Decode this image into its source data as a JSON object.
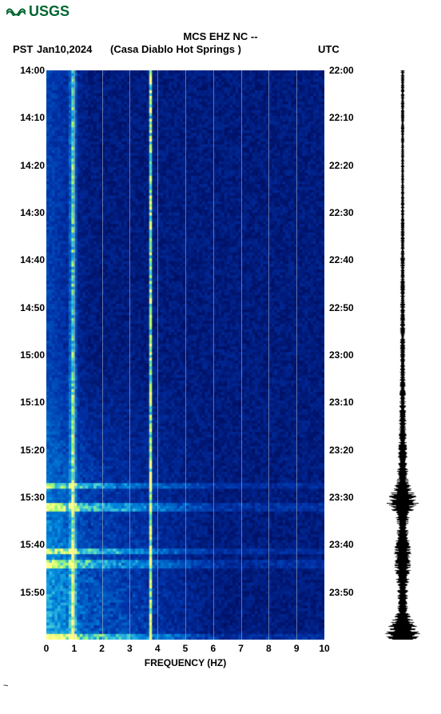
{
  "logo": {
    "text": "USGS",
    "color": "#006633"
  },
  "header": {
    "title": "MCS EHZ NC --",
    "pst_label": "PST",
    "date": "Jan10,2024",
    "location": "(Casa Diablo Hot Springs )",
    "utc_label": "UTC"
  },
  "spectrogram": {
    "type": "spectrogram",
    "x_axis": {
      "label": "FREQUENCY (HZ)",
      "min": 0,
      "max": 10,
      "ticks": [
        0,
        1,
        2,
        3,
        4,
        5,
        6,
        7,
        8,
        9,
        10
      ]
    },
    "y_axis_left": {
      "label": "PST",
      "ticks": [
        "14:00",
        "14:10",
        "14:20",
        "14:30",
        "14:40",
        "14:50",
        "15:00",
        "15:10",
        "15:20",
        "15:30",
        "15:40",
        "15:50"
      ],
      "positions": [
        0,
        0.0833,
        0.1667,
        0.25,
        0.3333,
        0.4167,
        0.5,
        0.5833,
        0.6667,
        0.75,
        0.8333,
        0.9167
      ]
    },
    "y_axis_right": {
      "label": "UTC",
      "ticks": [
        "22:00",
        "22:10",
        "22:20",
        "22:30",
        "22:40",
        "22:50",
        "23:00",
        "23:10",
        "23:20",
        "23:30",
        "23:40",
        "23:50"
      ],
      "positions": [
        0,
        0.0833,
        0.1667,
        0.25,
        0.3333,
        0.4167,
        0.5,
        0.5833,
        0.6667,
        0.75,
        0.8333,
        0.9167
      ]
    },
    "grid_vlines": [
      1,
      2,
      3,
      4,
      5,
      6,
      7,
      8,
      9
    ],
    "background_color": "#000066",
    "colormap": {
      "low": "#000044",
      "midlow": "#0033aa",
      "mid": "#0088dd",
      "midhigh": "#44ccdd",
      "high": "#aaff66",
      "peak": "#ffff88"
    },
    "hot_columns": [
      {
        "freq": 0.9,
        "intensity": 0.7,
        "width": 0.15
      },
      {
        "freq": 3.7,
        "intensity": 0.9,
        "width": 0.08
      }
    ],
    "hot_bands": [
      {
        "t": 0.725,
        "height": 0.01,
        "intensity": 0.8
      },
      {
        "t": 0.76,
        "height": 0.015,
        "intensity": 0.95
      },
      {
        "t": 0.84,
        "height": 0.01,
        "intensity": 0.85
      },
      {
        "t": 0.86,
        "height": 0.015,
        "intensity": 0.8
      },
      {
        "t": 0.99,
        "height": 0.01,
        "intensity": 0.9
      }
    ],
    "noise_rows": 200,
    "noise_cols": 100,
    "activity_gradient": {
      "start": 0.5,
      "slope": 2.0
    }
  },
  "waveform": {
    "color": "#000000",
    "amp_profile": [
      {
        "t": 0.0,
        "a": 0.06
      },
      {
        "t": 0.1,
        "a": 0.05
      },
      {
        "t": 0.2,
        "a": 0.05
      },
      {
        "t": 0.3,
        "a": 0.06
      },
      {
        "t": 0.4,
        "a": 0.07
      },
      {
        "t": 0.5,
        "a": 0.08
      },
      {
        "t": 0.6,
        "a": 0.1
      },
      {
        "t": 0.65,
        "a": 0.12
      },
      {
        "t": 0.72,
        "a": 0.18
      },
      {
        "t": 0.76,
        "a": 0.5
      },
      {
        "t": 0.78,
        "a": 0.22
      },
      {
        "t": 0.8,
        "a": 0.15
      },
      {
        "t": 0.84,
        "a": 0.25
      },
      {
        "t": 0.86,
        "a": 0.28
      },
      {
        "t": 0.9,
        "a": 0.18
      },
      {
        "t": 0.95,
        "a": 0.15
      },
      {
        "t": 0.99,
        "a": 0.6
      },
      {
        "t": 1.0,
        "a": 0.55
      }
    ]
  },
  "footer_mark": "~"
}
